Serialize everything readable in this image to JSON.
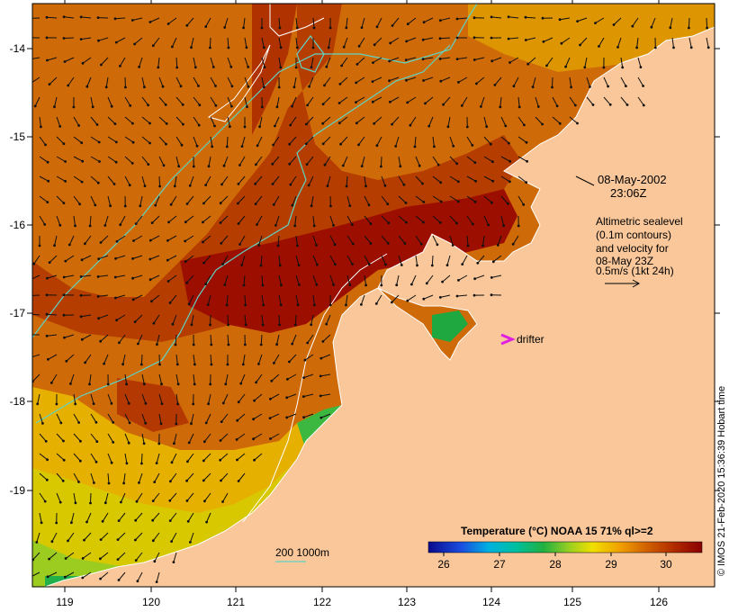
{
  "map": {
    "date_label": "08-May-2002",
    "time_label": "23:06Z",
    "altimetry_note": [
      "Altimetric sealevel",
      "(0.1m contours)",
      "and velocity for",
      "08-May 23Z",
      "0.5m/s (1kt 24h)"
    ],
    "drifter_label": "drifter",
    "depth_contours_label": "200  1000m",
    "credit": "© IMOS 21-Feb-2020 15:36:39 Hobart time",
    "colorbar": {
      "title": "Temperature (°C) NOAA 15 71% ql>=2",
      "ticks": [
        "26",
        "27",
        "28",
        "29",
        "30"
      ]
    },
    "x_ticks": [
      "119",
      "120",
      "121",
      "122",
      "123",
      "124",
      "125",
      "126"
    ],
    "y_ticks": [
      "-14",
      "-15",
      "-16",
      "-17",
      "-18",
      "-19"
    ],
    "colors": {
      "land": "#f9c79a",
      "warm": "#b83800",
      "hot": "#9c0a00",
      "mid": "#d57a00",
      "cool": "#e8c000",
      "cold": "#21b04a",
      "contour": "#5fd4c4",
      "drifter": "#e020e0"
    }
  }
}
